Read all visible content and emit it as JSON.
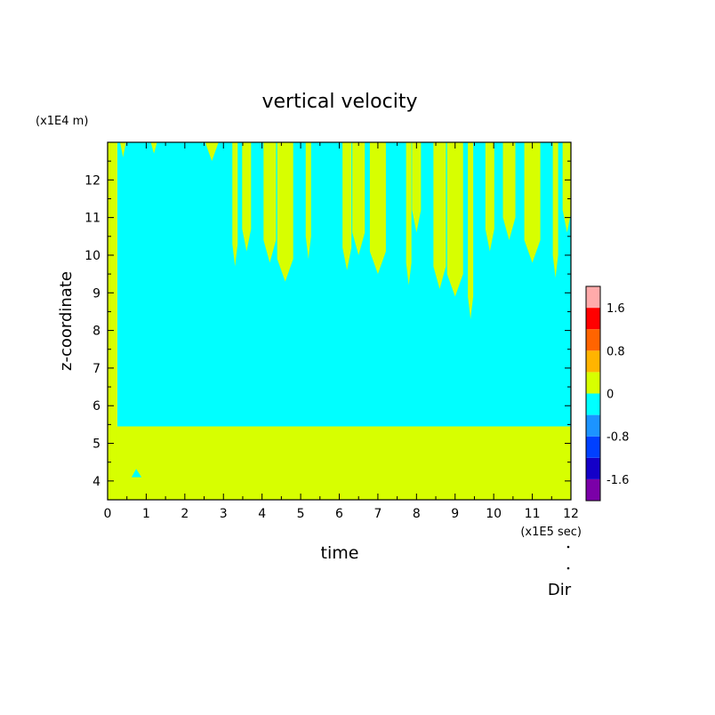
{
  "chart_data": {
    "type": "heatmap",
    "title": "vertical velocity",
    "xlabel": "time",
    "ylabel": "z-coordinate",
    "x_unit": "(x1E5 sec)",
    "y_unit": "(x1E4 m)",
    "xlim": [
      0,
      12
    ],
    "ylim": [
      3.5,
      13
    ],
    "x_ticks": [
      "0",
      "1",
      "2",
      "3",
      "4",
      "5",
      "6",
      "7",
      "8",
      "9",
      "10",
      "11",
      "12"
    ],
    "y_ticks": [
      "4",
      "5",
      "6",
      "7",
      "8",
      "9",
      "10",
      "11",
      "12"
    ],
    "colorbar": {
      "levels": [
        -2.0,
        -1.6,
        -1.2,
        -0.8,
        -0.4,
        0,
        0.4,
        0.8,
        1.2,
        1.6,
        2.0
      ],
      "colors": [
        "#7b00a8",
        "#1400c8",
        "#0040ff",
        "#1c94ff",
        "#00ffff",
        "#d7ff00",
        "#ffb400",
        "#ff6400",
        "#ff0000",
        "#ffaaaa"
      ],
      "tick_labels": [
        "1.6",
        "0.8",
        "0",
        "-0.8",
        "-1.6"
      ],
      "tick_values": [
        1.6,
        0.8,
        0,
        -0.8,
        -1.6
      ]
    },
    "fields": {
      "positive_color": "#d7ff00",
      "negative_color": "#00ffff",
      "zero_line_height": 5.45,
      "mostly_negative_region": {
        "x": [
          0.25,
          12
        ],
        "z": [
          5.45,
          13
        ]
      },
      "mostly_positive_region": {
        "x": [
          0,
          12
        ],
        "z": [
          3.5,
          5.45
        ]
      },
      "upward_plume_heights": [
        [
          0.0,
          12.9
        ],
        [
          0.4,
          12.6
        ],
        [
          1.2,
          12.7
        ],
        [
          2.7,
          12.5
        ],
        [
          3.3,
          9.7
        ],
        [
          3.6,
          10.1
        ],
        [
          4.2,
          9.8
        ],
        [
          4.6,
          9.3
        ],
        [
          5.2,
          9.9
        ],
        [
          6.2,
          9.6
        ],
        [
          6.5,
          10.0
        ],
        [
          7.0,
          9.5
        ],
        [
          7.8,
          9.2
        ],
        [
          8.0,
          10.6
        ],
        [
          8.6,
          9.1
        ],
        [
          9.0,
          8.9
        ],
        [
          9.4,
          8.3
        ],
        [
          9.9,
          10.1
        ],
        [
          10.4,
          10.4
        ],
        [
          11.0,
          9.8
        ],
        [
          11.6,
          9.4
        ],
        [
          11.9,
          10.6
        ]
      ]
    },
    "annotations": [
      "Dir"
    ]
  }
}
